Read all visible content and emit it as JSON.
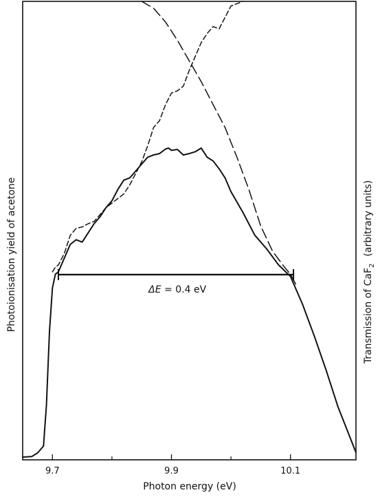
{
  "chart_data": {
    "type": "line",
    "xlabel": "Photon energy (eV)",
    "ylabel_left": "Photoionisation yield of acetone",
    "ylabel_right_parts": [
      "Transmission of CaF",
      "2",
      "(arbitrary units)"
    ],
    "xlim": [
      9.65,
      10.21
    ],
    "ylim": [
      0,
      100
    ],
    "x_ticks": [
      {
        "value": 9.7,
        "label": "9.7"
      },
      {
        "value": 9.9,
        "label": "9.9"
      },
      {
        "value": 10.1,
        "label": "10.1"
      }
    ],
    "x_minor_ticks": [
      9.8,
      10.0
    ],
    "grid": false,
    "annotation": {
      "label_parts": [
        "ΔE",
        " = 0.4 eV"
      ],
      "x_start": 9.71,
      "x_end": 10.105,
      "y": 40.4,
      "text_x": 9.91,
      "text_y": 36.5
    },
    "series": [
      {
        "style": "solid",
        "x": [
          9.65,
          9.665,
          9.675,
          9.685,
          9.69,
          9.695,
          9.7,
          9.705,
          9.71,
          9.72,
          9.73,
          9.74,
          9.75,
          9.76,
          9.77,
          9.78,
          9.79,
          9.8,
          9.81,
          9.82,
          9.83,
          9.84,
          9.85,
          9.86,
          9.87,
          9.88,
          9.89,
          9.895,
          9.9,
          9.91,
          9.92,
          9.93,
          9.94,
          9.95,
          9.96,
          9.97,
          9.98,
          9.99,
          10.0,
          10.02,
          10.04,
          10.06,
          10.08,
          10.1,
          10.12,
          10.14,
          10.16,
          10.18,
          10.21
        ],
        "y": [
          0.6,
          0.7,
          1.5,
          3.0,
          12.0,
          28.0,
          37.5,
          40.5,
          41.0,
          44.0,
          47.0,
          48.0,
          47.5,
          49.5,
          51.5,
          53.0,
          55.0,
          56.5,
          59.0,
          61.0,
          61.5,
          63.0,
          64.5,
          66.0,
          66.5,
          66.8,
          67.8,
          68.0,
          67.5,
          67.7,
          66.5,
          66.8,
          67.2,
          68.0,
          66.0,
          65.2,
          63.5,
          61.5,
          58.5,
          54.0,
          49.0,
          46.0,
          42.5,
          40.0,
          34.0,
          27.0,
          19.5,
          11.5,
          1.6
        ]
      },
      {
        "style": "short-dash",
        "x": [
          9.7,
          9.705,
          9.71,
          9.72,
          9.73,
          9.74,
          9.75,
          9.76,
          9.77,
          9.78,
          9.79,
          9.8,
          9.81,
          9.82,
          9.83,
          9.84,
          9.85,
          9.86,
          9.87,
          9.88,
          9.89,
          9.9,
          9.91,
          9.92,
          9.93,
          9.94,
          9.95,
          9.96,
          9.97,
          9.98,
          9.99,
          10.0,
          10.02
        ],
        "y": [
          41.0,
          42.0,
          42.5,
          45.0,
          49.0,
          50.5,
          50.8,
          51.5,
          52.0,
          53.5,
          55.0,
          56.0,
          57.0,
          58.0,
          60.0,
          62.5,
          65.0,
          68.5,
          72.5,
          74.0,
          77.5,
          80.0,
          80.5,
          81.5,
          85.0,
          88.0,
          91.0,
          93.0,
          94.5,
          94.0,
          96.5,
          99.0,
          100.0
        ]
      },
      {
        "style": "long-dash",
        "x": [
          9.85,
          9.87,
          9.89,
          9.91,
          9.93,
          9.95,
          9.97,
          9.99,
          10.01,
          10.03,
          10.05,
          10.07,
          10.09,
          10.1,
          10.11
        ],
        "y": [
          100.0,
          98.5,
          95.5,
          91.5,
          87.0,
          82.5,
          77.5,
          72.5,
          66.0,
          59.0,
          51.0,
          45.5,
          42.0,
          40.5,
          38.0
        ]
      }
    ]
  }
}
